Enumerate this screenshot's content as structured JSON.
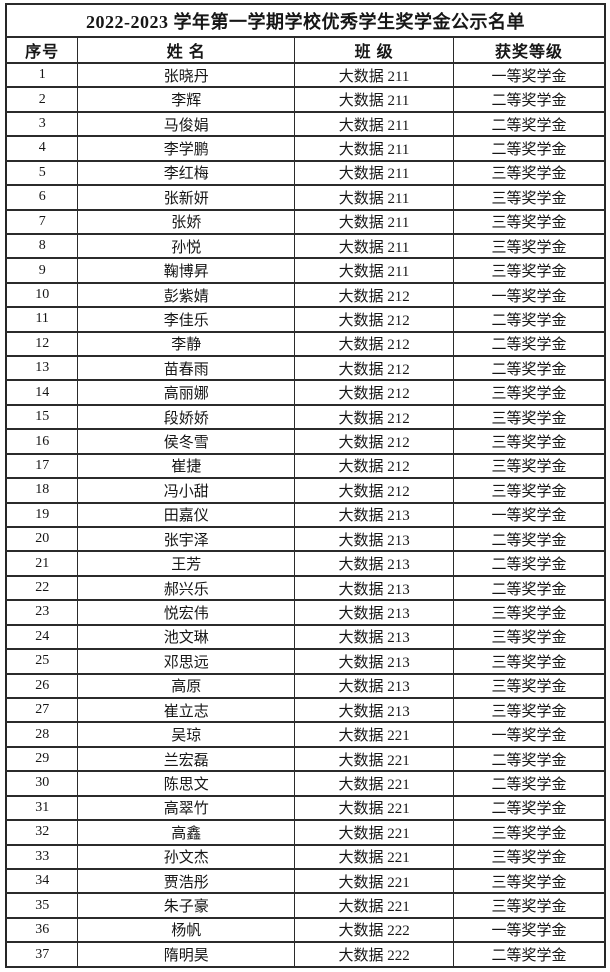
{
  "document": {
    "title": "2022-2023 学年第一学期学校优秀学生奖学金公示名单",
    "columns": [
      {
        "key": "index",
        "label": "序号"
      },
      {
        "key": "name",
        "label": "姓 名"
      },
      {
        "key": "class",
        "label": "班 级"
      },
      {
        "key": "award",
        "label": "获奖等级"
      }
    ],
    "rows": [
      {
        "index": "1",
        "name": "张晓丹",
        "class": "大数据 211",
        "award": "一等奖学金"
      },
      {
        "index": "2",
        "name": "李辉",
        "class": "大数据 211",
        "award": "二等奖学金"
      },
      {
        "index": "3",
        "name": "马俊娟",
        "class": "大数据 211",
        "award": "二等奖学金"
      },
      {
        "index": "4",
        "name": "李学鹏",
        "class": "大数据 211",
        "award": "二等奖学金"
      },
      {
        "index": "5",
        "name": "李红梅",
        "class": "大数据 211",
        "award": "三等奖学金"
      },
      {
        "index": "6",
        "name": "张新妍",
        "class": "大数据 211",
        "award": "三等奖学金"
      },
      {
        "index": "7",
        "name": "张娇",
        "class": "大数据 211",
        "award": "三等奖学金"
      },
      {
        "index": "8",
        "name": "孙悦",
        "class": "大数据 211",
        "award": "三等奖学金"
      },
      {
        "index": "9",
        "name": "鞠博昇",
        "class": "大数据 211",
        "award": "三等奖学金"
      },
      {
        "index": "10",
        "name": "彭紫婧",
        "class": "大数据 212",
        "award": "一等奖学金"
      },
      {
        "index": "11",
        "name": "李佳乐",
        "class": "大数据 212",
        "award": "二等奖学金"
      },
      {
        "index": "12",
        "name": "李静",
        "class": "大数据 212",
        "award": "二等奖学金"
      },
      {
        "index": "13",
        "name": "苗春雨",
        "class": "大数据 212",
        "award": "二等奖学金"
      },
      {
        "index": "14",
        "name": "高丽娜",
        "class": "大数据 212",
        "award": "三等奖学金"
      },
      {
        "index": "15",
        "name": "段娇娇",
        "class": "大数据 212",
        "award": "三等奖学金"
      },
      {
        "index": "16",
        "name": "侯冬雪",
        "class": "大数据 212",
        "award": "三等奖学金"
      },
      {
        "index": "17",
        "name": "崔捷",
        "class": "大数据 212",
        "award": "三等奖学金"
      },
      {
        "index": "18",
        "name": "冯小甜",
        "class": "大数据 212",
        "award": "三等奖学金"
      },
      {
        "index": "19",
        "name": "田嘉仪",
        "class": "大数据 213",
        "award": "一等奖学金"
      },
      {
        "index": "20",
        "name": "张宇泽",
        "class": "大数据 213",
        "award": "二等奖学金"
      },
      {
        "index": "21",
        "name": "王芳",
        "class": "大数据 213",
        "award": "二等奖学金"
      },
      {
        "index": "22",
        "name": "郝兴乐",
        "class": "大数据 213",
        "award": "二等奖学金"
      },
      {
        "index": "23",
        "name": "悦宏伟",
        "class": "大数据 213",
        "award": "三等奖学金"
      },
      {
        "index": "24",
        "name": "池文琳",
        "class": "大数据 213",
        "award": "三等奖学金"
      },
      {
        "index": "25",
        "name": "邓思远",
        "class": "大数据 213",
        "award": "三等奖学金"
      },
      {
        "index": "26",
        "name": "高原",
        "class": "大数据 213",
        "award": "三等奖学金"
      },
      {
        "index": "27",
        "name": "崔立志",
        "class": "大数据 213",
        "award": "三等奖学金"
      },
      {
        "index": "28",
        "name": "吴琼",
        "class": "大数据 221",
        "award": "一等奖学金"
      },
      {
        "index": "29",
        "name": "兰宏磊",
        "class": "大数据 221",
        "award": "二等奖学金"
      },
      {
        "index": "30",
        "name": "陈思文",
        "class": "大数据 221",
        "award": "二等奖学金"
      },
      {
        "index": "31",
        "name": "高翠竹",
        "class": "大数据 221",
        "award": "二等奖学金"
      },
      {
        "index": "32",
        "name": "高鑫",
        "class": "大数据 221",
        "award": "三等奖学金"
      },
      {
        "index": "33",
        "name": "孙文杰",
        "class": "大数据 221",
        "award": "三等奖学金"
      },
      {
        "index": "34",
        "name": "贾浩彤",
        "class": "大数据 221",
        "award": "三等奖学金"
      },
      {
        "index": "35",
        "name": "朱子豪",
        "class": "大数据 221",
        "award": "三等奖学金"
      },
      {
        "index": "36",
        "name": "杨帆",
        "class": "大数据 222",
        "award": "一等奖学金"
      },
      {
        "index": "37",
        "name": "隋明昊",
        "class": "大数据 222",
        "award": "二等奖学金"
      }
    ],
    "colors": {
      "border": "#2b2b2b",
      "text": "#161616",
      "background": "#ffffff"
    }
  }
}
